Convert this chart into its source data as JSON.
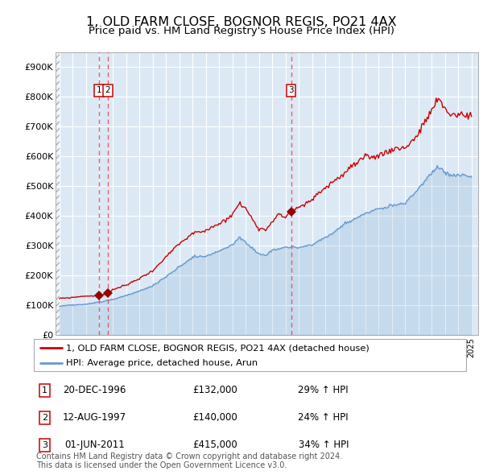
{
  "title": "1, OLD FARM CLOSE, BOGNOR REGIS, PO21 4AX",
  "subtitle": "Price paid vs. HM Land Registry's House Price Index (HPI)",
  "background_color": "#dce9f5",
  "plot_bg_color": "#dce9f5",
  "grid_color": "#ffffff",
  "red_line_color": "#cc0000",
  "blue_line_color": "#6699cc",
  "sale_marker_color": "#990000",
  "dashed_line_color": "#ee4444",
  "legend1": "1, OLD FARM CLOSE, BOGNOR REGIS, PO21 4AX (detached house)",
  "legend2": "HPI: Average price, detached house, Arun",
  "footer": "Contains HM Land Registry data © Crown copyright and database right 2024.\nThis data is licensed under the Open Government Licence v3.0.",
  "sales": [
    {
      "date_num": 1996.97,
      "price": 132000,
      "label": "1"
    },
    {
      "date_num": 1997.62,
      "price": 140000,
      "label": "2"
    },
    {
      "date_num": 2011.42,
      "price": 415000,
      "label": "3"
    }
  ],
  "sale_annotations": [
    {
      "num": "1",
      "date": "20-DEC-1996",
      "price": "£132,000",
      "pct": "29% ↑ HPI"
    },
    {
      "num": "2",
      "date": "12-AUG-1997",
      "price": "£140,000",
      "pct": "24% ↑ HPI"
    },
    {
      "num": "3",
      "date": "01-JUN-2011",
      "price": "£415,000",
      "pct": "34% ↑ HPI"
    }
  ],
  "ylim": [
    0,
    950000
  ],
  "yticks": [
    0,
    100000,
    200000,
    300000,
    400000,
    500000,
    600000,
    700000,
    800000,
    900000
  ],
  "ytick_labels": [
    "£0",
    "£100K",
    "£200K",
    "£300K",
    "£400K",
    "£500K",
    "£600K",
    "£700K",
    "£800K",
    "£900K"
  ],
  "xlim_start": 1993.7,
  "xlim_end": 2025.5,
  "hpi_base_value": 97000,
  "hpi_keypoints": [
    [
      1994.0,
      97000
    ],
    [
      1995.0,
      100000
    ],
    [
      1996.0,
      104000
    ],
    [
      1997.0,
      112000
    ],
    [
      1998.0,
      122000
    ],
    [
      1999.0,
      135000
    ],
    [
      2000.0,
      150000
    ],
    [
      2001.0,
      168000
    ],
    [
      2002.0,
      200000
    ],
    [
      2003.0,
      235000
    ],
    [
      2004.0,
      265000
    ],
    [
      2005.0,
      270000
    ],
    [
      2006.0,
      290000
    ],
    [
      2007.0,
      310000
    ],
    [
      2007.5,
      335000
    ],
    [
      2008.0,
      320000
    ],
    [
      2009.0,
      275000
    ],
    [
      2009.5,
      270000
    ],
    [
      2010.0,
      290000
    ],
    [
      2011.0,
      300000
    ],
    [
      2012.0,
      295000
    ],
    [
      2013.0,
      305000
    ],
    [
      2014.0,
      330000
    ],
    [
      2015.0,
      360000
    ],
    [
      2016.0,
      390000
    ],
    [
      2017.0,
      415000
    ],
    [
      2018.0,
      430000
    ],
    [
      2019.0,
      440000
    ],
    [
      2020.0,
      445000
    ],
    [
      2021.0,
      490000
    ],
    [
      2022.0,
      545000
    ],
    [
      2022.5,
      565000
    ],
    [
      2023.0,
      550000
    ],
    [
      2023.5,
      540000
    ],
    [
      2024.0,
      540000
    ],
    [
      2025.0,
      535000
    ]
  ],
  "red_keypoints": [
    [
      1994.0,
      122000
    ],
    [
      1995.0,
      126000
    ],
    [
      1996.0,
      132000
    ],
    [
      1996.97,
      132000
    ],
    [
      1997.0,
      134000
    ],
    [
      1997.62,
      140000
    ],
    [
      1998.0,
      155000
    ],
    [
      1999.0,
      170000
    ],
    [
      2000.0,
      190000
    ],
    [
      2001.0,
      215000
    ],
    [
      2002.0,
      260000
    ],
    [
      2003.0,
      305000
    ],
    [
      2004.0,
      340000
    ],
    [
      2005.0,
      350000
    ],
    [
      2006.0,
      375000
    ],
    [
      2007.0,
      400000
    ],
    [
      2007.5,
      435000
    ],
    [
      2008.0,
      415000
    ],
    [
      2008.5,
      380000
    ],
    [
      2009.0,
      350000
    ],
    [
      2009.5,
      345000
    ],
    [
      2010.0,
      375000
    ],
    [
      2010.5,
      400000
    ],
    [
      2011.0,
      390000
    ],
    [
      2011.42,
      415000
    ],
    [
      2012.0,
      420000
    ],
    [
      2013.0,
      450000
    ],
    [
      2014.0,
      490000
    ],
    [
      2015.0,
      530000
    ],
    [
      2016.0,
      565000
    ],
    [
      2017.0,
      600000
    ],
    [
      2018.0,
      610000
    ],
    [
      2019.0,
      625000
    ],
    [
      2020.0,
      630000
    ],
    [
      2021.0,
      680000
    ],
    [
      2022.0,
      760000
    ],
    [
      2022.5,
      800000
    ],
    [
      2023.0,
      770000
    ],
    [
      2023.5,
      750000
    ],
    [
      2024.0,
      745000
    ],
    [
      2025.0,
      740000
    ]
  ]
}
